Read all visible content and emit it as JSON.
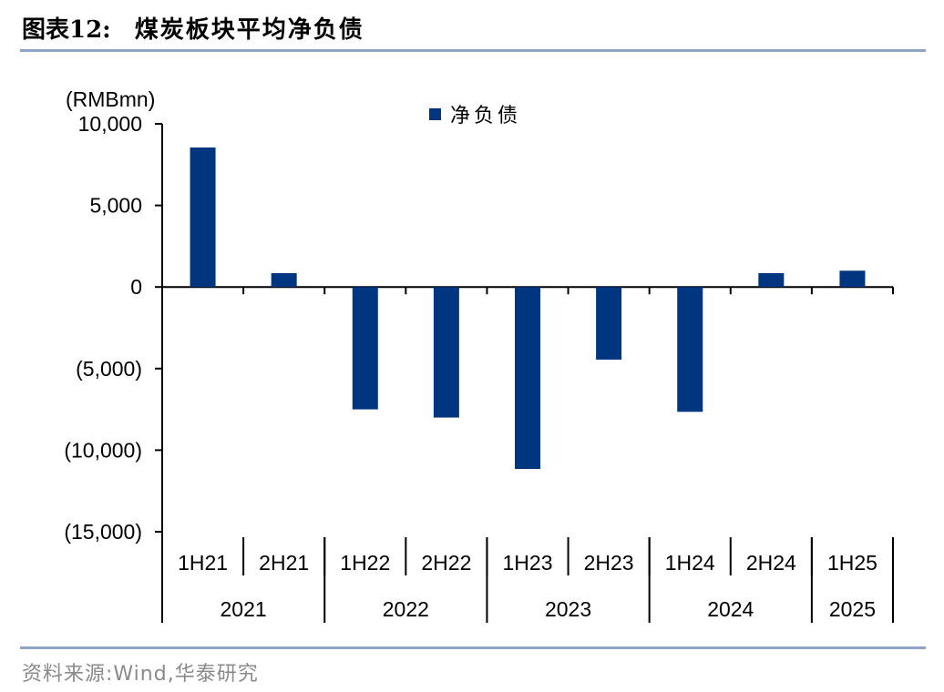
{
  "header": {
    "figure_label": "图表12:",
    "title": "煤炭板块平均净负债"
  },
  "footer": {
    "source": "资料来源:Wind,华泰研究"
  },
  "colors": {
    "bar": "#003580",
    "rule": "#8ea3c8",
    "source_text": "#8a8a8a"
  },
  "chart_data": {
    "type": "bar",
    "unit_label": "(RMBmn)",
    "categories": [
      "1H21",
      "2H21",
      "1H22",
      "2H22",
      "1H23",
      "2H23",
      "1H24",
      "2H24",
      "1H25"
    ],
    "year_groups": [
      {
        "label": "2021",
        "count": 2
      },
      {
        "label": "2022",
        "count": 2
      },
      {
        "label": "2023",
        "count": 2
      },
      {
        "label": "2024",
        "count": 2
      },
      {
        "label": "2025",
        "count": 1
      }
    ],
    "series": [
      {
        "name": "净负债",
        "values": [
          8550,
          850,
          -7500,
          -8000,
          -11150,
          -4450,
          -7650,
          850,
          1000
        ]
      }
    ],
    "ylim": [
      -15000,
      10000
    ],
    "yticks": [
      10000,
      5000,
      0,
      -5000,
      -10000,
      -15000
    ],
    "ytick_labels": [
      "10,000",
      "5,000",
      "0",
      "(5,000)",
      "(10,000)",
      "(15,000)"
    ],
    "legend_position": "top-center",
    "grid": false
  }
}
